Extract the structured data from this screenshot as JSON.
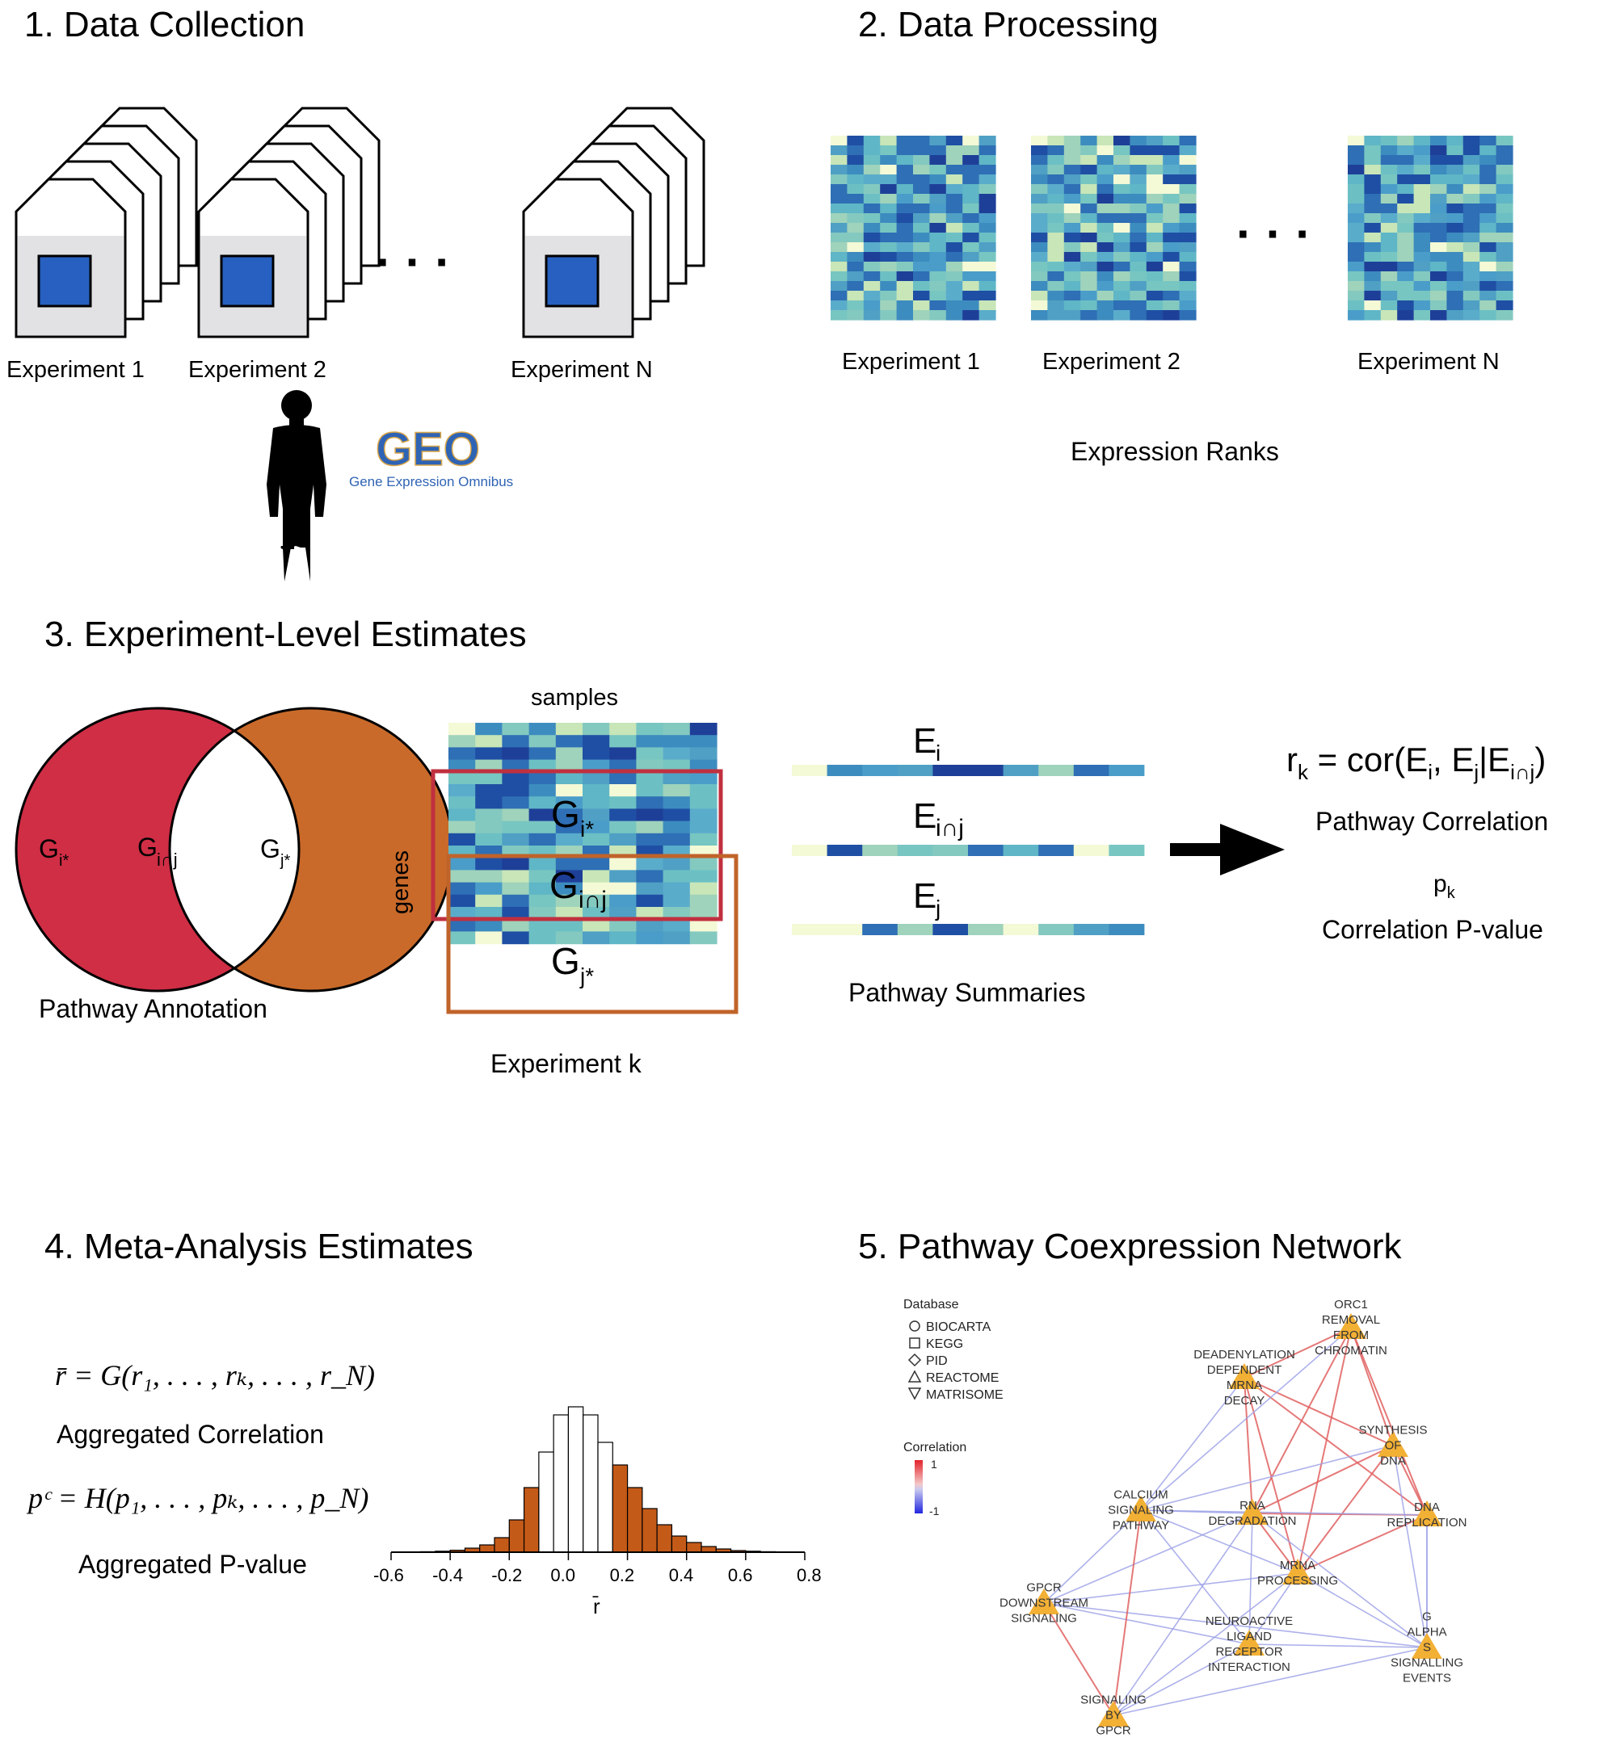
{
  "sections": {
    "s1": {
      "title": "1. Data Collection",
      "experiments": [
        "Experiment 1",
        "Experiment 2",
        "Experiment N"
      ],
      "ellipsis": "· · ·",
      "geo_logo": "GEO",
      "geo_tagline": "Gene Expression Omnibus"
    },
    "s2": {
      "title": "2. Data Processing",
      "experiments": [
        "Experiment 1",
        "Experiment 2",
        "Experiment N"
      ],
      "ellipsis": "· · ·",
      "caption": "Expression Ranks"
    },
    "s3": {
      "title": "3. Experiment-Level Estimates",
      "venn": {
        "left_label": "G",
        "left_sub": "i*",
        "mid_label": "G",
        "mid_sub": "i∩j",
        "right_label": "G",
        "right_sub": "j*",
        "caption": "Pathway Annotation"
      },
      "heatmap": {
        "top_label": "samples",
        "side_label": "genes",
        "caption": "Experiment k",
        "g1": "G",
        "g1_sub": "i*",
        "g2": "G",
        "g2_sub": "i∩j",
        "g3": "G",
        "g3_sub": "j*"
      },
      "summaries": {
        "e1": "E",
        "e1_sub": "i",
        "e2": "E",
        "e2_sub": "i∩j",
        "e3": "E",
        "e3_sub": "j",
        "caption": "Pathway Summaries"
      },
      "result": {
        "formula_lhs": "r",
        "formula_lhs_sub": "k",
        "formula_rhs": " = cor(E",
        "formula_a_sub": "i",
        "formula_mid": ", E",
        "formula_b_sub": "j",
        "formula_bar": "|E",
        "formula_c_sub": "i∩j",
        "formula_end": ")",
        "corr_label": "Pathway Correlation",
        "p_label": "p",
        "p_sub": "k",
        "pval_label": "Correlation P-value"
      }
    },
    "s4": {
      "title": "4. Meta-Analysis Estimates",
      "formula1": "r̄ = G(r₁, . . . , rₖ, . . . , r_N)",
      "formula1_label": "Aggregated Correlation",
      "formula2": "pᶜ = H(p₁, . . . , pₖ, . . . , p_N)",
      "formula2_label": "Aggregated P-value"
    },
    "s5": {
      "title": "5. Pathway Coexpression Network",
      "legend_db_title": "Database",
      "legend_db": [
        {
          "shape": "circle",
          "label": "BIOCARTA"
        },
        {
          "shape": "square",
          "label": "KEGG"
        },
        {
          "shape": "diamond",
          "label": "PID"
        },
        {
          "shape": "triangle-up",
          "label": "REACTOME"
        },
        {
          "shape": "triangle-down",
          "label": "MATRISOME"
        }
      ],
      "legend_corr_title": "Correlation",
      "legend_corr_max": "1",
      "legend_corr_min": "-1",
      "nodes": [
        {
          "id": "orc1",
          "lines": [
            "ORC1",
            "REMOVAL",
            "FROM",
            "CHROMATIN"
          ]
        },
        {
          "id": "deadenyl",
          "lines": [
            "DEADENYLATION",
            "DEPENDENT",
            "MRNA",
            "DECAY"
          ]
        },
        {
          "id": "synth",
          "lines": [
            "SYNTHESIS",
            "OF",
            "DNA"
          ]
        },
        {
          "id": "calcium",
          "lines": [
            "CALCIUM",
            "SIGNALING",
            "PATHWAY"
          ]
        },
        {
          "id": "rnadeg",
          "lines": [
            "RNA",
            "DEGRADATION"
          ]
        },
        {
          "id": "dnarep",
          "lines": [
            "DNA",
            "REPLICATION"
          ]
        },
        {
          "id": "mrna",
          "lines": [
            "MRNA",
            "PROCESSING"
          ]
        },
        {
          "id": "gpcrdown",
          "lines": [
            "GPCR",
            "DOWNSTREAM",
            "SIGNALING"
          ]
        },
        {
          "id": "neuro",
          "lines": [
            "NEUROACTIVE",
            "LIGAND",
            "RECEPTOR",
            "INTERACTION"
          ]
        },
        {
          "id": "galpha",
          "lines": [
            "G",
            "ALPHA",
            "S",
            "SIGNALLING",
            "EVENTS"
          ]
        },
        {
          "id": "sigbygpcr",
          "lines": [
            "SIGNALING",
            "BY",
            "GPCR"
          ]
        }
      ]
    }
  },
  "colors": {
    "venn_left": "#cf2e45",
    "venn_right": "#c96a2a",
    "box_red": "#c0303f",
    "box_orange": "#c0632a",
    "hist_tail": "#c45a18",
    "geo_blue": "#2f63b4",
    "node": "#f2b035",
    "tile_blue": "#2760c0"
  },
  "chart_data": {
    "type": "bar",
    "xlabel": "r̄",
    "x_ticks": [
      "-0.6",
      "-0.4",
      "-0.2",
      "0.0",
      "0.2",
      "0.4",
      "0.6",
      "0.8"
    ],
    "xlim": [
      -0.6,
      0.8
    ],
    "bin_width": 0.05,
    "bins_start": [
      -0.55,
      -0.5,
      -0.45,
      -0.4,
      -0.35,
      -0.3,
      -0.25,
      -0.2,
      -0.15,
      -0.1,
      -0.05,
      0.0,
      0.05,
      0.1,
      0.15,
      0.2,
      0.25,
      0.3,
      0.35,
      0.4,
      0.45,
      0.5,
      0.55,
      0.6,
      0.65,
      0.7
    ],
    "counts": [
      0.002,
      0.003,
      0.006,
      0.012,
      0.025,
      0.045,
      0.09,
      0.2,
      0.4,
      0.62,
      0.85,
      0.9,
      0.85,
      0.68,
      0.54,
      0.4,
      0.27,
      0.17,
      0.1,
      0.06,
      0.035,
      0.02,
      0.01,
      0.006,
      0.003,
      0.002
    ],
    "highlight": [
      true,
      true,
      true,
      true,
      true,
      true,
      true,
      true,
      true,
      false,
      false,
      false,
      false,
      false,
      true,
      true,
      true,
      true,
      true,
      true,
      true,
      true,
      true,
      true,
      true,
      true
    ],
    "ylim": [
      0,
      1
    ]
  }
}
